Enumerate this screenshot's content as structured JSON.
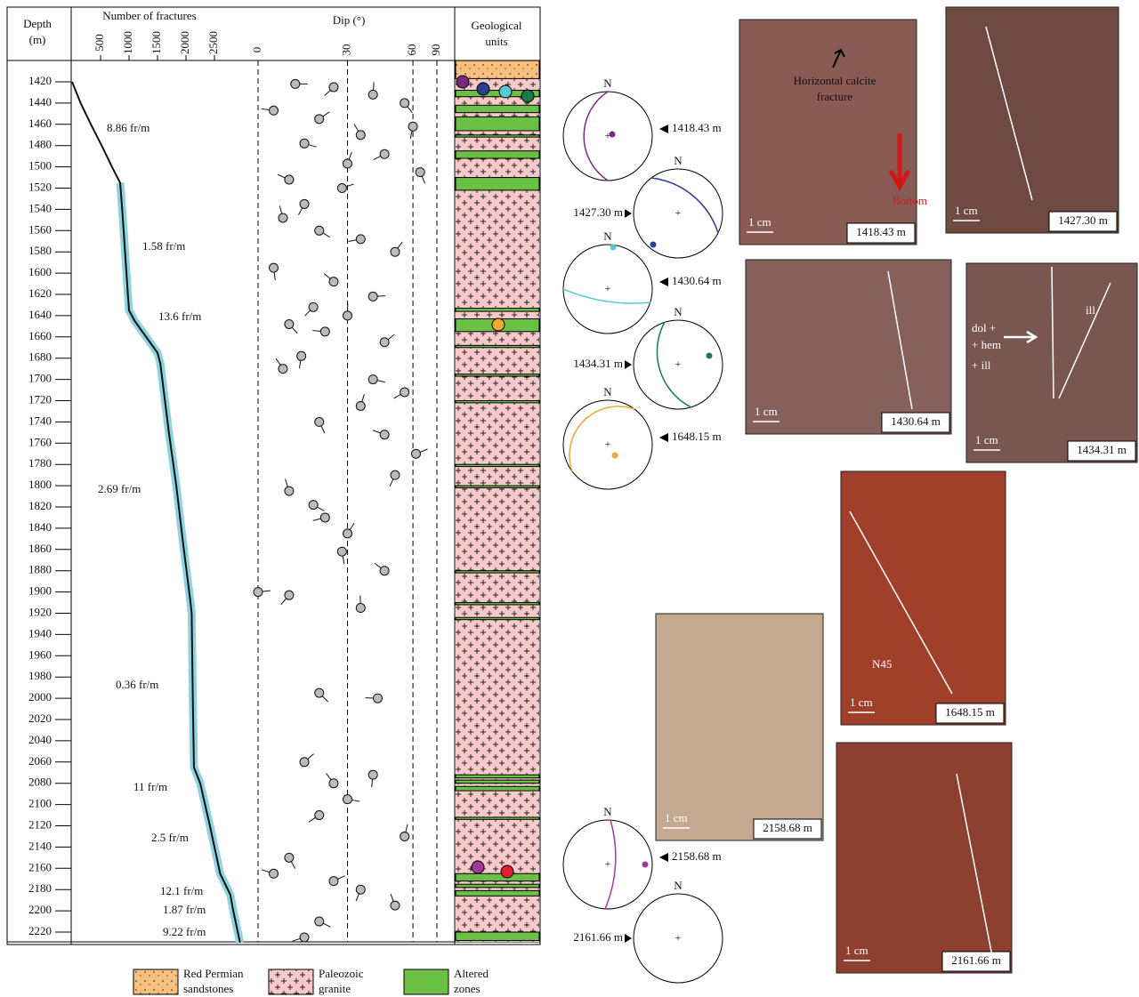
{
  "log": {
    "headers": {
      "depth": "Depth",
      "depth_unit": "(m)",
      "fractures": "Number of fractures",
      "dip": "Dip (°)",
      "units_1": "Geological",
      "units_2": "units"
    },
    "depth_ticks": [
      1420,
      1440,
      1460,
      1480,
      1500,
      1520,
      1540,
      1560,
      1580,
      1600,
      1620,
      1640,
      1660,
      1680,
      1700,
      1720,
      1740,
      1760,
      1780,
      1800,
      1820,
      1840,
      1860,
      1880,
      1900,
      1920,
      1940,
      1960,
      1980,
      2000,
      2020,
      2040,
      2060,
      2080,
      2100,
      2120,
      2140,
      2160,
      2180,
      2200,
      2220
    ],
    "fracture_ticks": [
      500,
      1000,
      1500,
      2000,
      2500
    ],
    "dip_ticks": [
      0,
      30,
      60,
      90
    ],
    "cumulative": {
      "depth": [
        1420,
        1440,
        1460,
        1480,
        1500,
        1515,
        1540,
        1580,
        1620,
        1635,
        1645,
        1660,
        1675,
        1685,
        1750,
        1800,
        1850,
        1910,
        1920,
        2000,
        2065,
        2080,
        2120,
        2165,
        2185,
        2200,
        2230
      ],
      "count": [
        0,
        150,
        330,
        520,
        700,
        844,
        880,
        930,
        980,
        1000,
        1100,
        1300,
        1500,
        1550,
        1700,
        1830,
        1940,
        2080,
        2100,
        2120,
        2140,
        2250,
        2420,
        2600,
        2780,
        2830,
        2950
      ]
    },
    "rates": [
      "8.86 fr/m",
      "1.58 fr/m",
      "13.6 fr/m",
      "2.69 fr/m",
      "0.36 fr/m",
      "11 fr/m",
      "2.5 fr/m",
      "12.1 fr/m",
      "1.87 fr/m",
      "9.22 fr/m"
    ],
    "fractures": {
      "depth": [
        1422,
        1425,
        1432,
        1440,
        1447,
        1455,
        1462,
        1470,
        1478,
        1488,
        1497,
        1505,
        1512,
        1520,
        1535,
        1548,
        1560,
        1568,
        1580,
        1595,
        1608,
        1622,
        1632,
        1640,
        1648,
        1655,
        1665,
        1678,
        1690,
        1700,
        1712,
        1725,
        1740,
        1752,
        1770,
        1790,
        1805,
        1818,
        1830,
        1845,
        1862,
        1880,
        1900,
        1903,
        1915,
        1995,
        2000,
        2060,
        2072,
        2080,
        2095,
        2110,
        2130,
        2150,
        2165,
        2172,
        2180,
        2195,
        2210,
        2225
      ],
      "dip": [
        12,
        25,
        40,
        55,
        5,
        20,
        60,
        35,
        15,
        45,
        30,
        65,
        10,
        28,
        15,
        8,
        20,
        35,
        50,
        5,
        25,
        40,
        18,
        30,
        10,
        22,
        45,
        14,
        8,
        40,
        55,
        35,
        20,
        45,
        62,
        50,
        10,
        18,
        22,
        30,
        28,
        45,
        0,
        10,
        35,
        20,
        42,
        15,
        40,
        25,
        30,
        20,
        55,
        10,
        5,
        25,
        35,
        50,
        20,
        15
      ]
    },
    "sandstone": [
      1400,
      1417
    ],
    "altered_zones": [
      [
        1428,
        1434
      ],
      [
        1442,
        1449
      ],
      [
        1453,
        1466
      ],
      [
        1470,
        1472
      ],
      [
        1485,
        1492
      ],
      [
        1510,
        1522
      ],
      [
        1633,
        1636
      ],
      [
        1643,
        1655
      ],
      [
        1668,
        1670
      ],
      [
        1695,
        1697
      ],
      [
        1720,
        1722
      ],
      [
        1780,
        1782
      ],
      [
        1800,
        1802
      ],
      [
        1880,
        1882
      ],
      [
        1910,
        1912
      ],
      [
        1924,
        1926
      ],
      [
        2072,
        2075
      ],
      [
        2077,
        2080
      ],
      [
        2083,
        2087
      ],
      [
        2112,
        2114
      ],
      [
        2165,
        2172
      ],
      [
        2175,
        2178
      ],
      [
        2181,
        2186
      ],
      [
        2220,
        2228
      ]
    ]
  },
  "stereonets": [
    {
      "label": "1418.43 m",
      "color": "#7b2a84"
    },
    {
      "label": "1427.30 m",
      "color": "#2a3f8f"
    },
    {
      "label": "1430.64 m",
      "color": "#5bc8d8"
    },
    {
      "label": "1434.31 m",
      "color": "#1b7a4a"
    },
    {
      "label": "1648.15 m",
      "color": "#f0a830"
    },
    {
      "label": "2158.68 m",
      "color": "#a03a9a"
    },
    {
      "label": "2161.66 m",
      "color": "#e0202a"
    }
  ],
  "north": "N",
  "photos": [
    {
      "label": "1418.43 m",
      "scale": "1 cm"
    },
    {
      "label": "1427.30 m",
      "scale": "1 cm"
    },
    {
      "label": "1430.64 m",
      "scale": "1 cm"
    },
    {
      "label": "1434.31 m",
      "scale": "1 cm"
    },
    {
      "label": "1648.15 m",
      "scale": "1 cm"
    },
    {
      "label": "2158.68 m",
      "scale": "1 cm"
    },
    {
      "label": "2161.66 m",
      "scale": "1 cm"
    }
  ],
  "annotations": {
    "calcite_1": "Horizontal calcite",
    "calcite_2": "fracture",
    "bottom": "Bottom",
    "dol": "dol +",
    "hem": "+ hem",
    "ill_1": "+ ill",
    "ill_2": "ill",
    "n45": "N45"
  },
  "legend": [
    {
      "line1": "Red Permian",
      "line2": "sandstones"
    },
    {
      "line1": "Paleozoic",
      "line2": "granite"
    },
    {
      "line1": "Altered",
      "line2": "zones"
    }
  ]
}
